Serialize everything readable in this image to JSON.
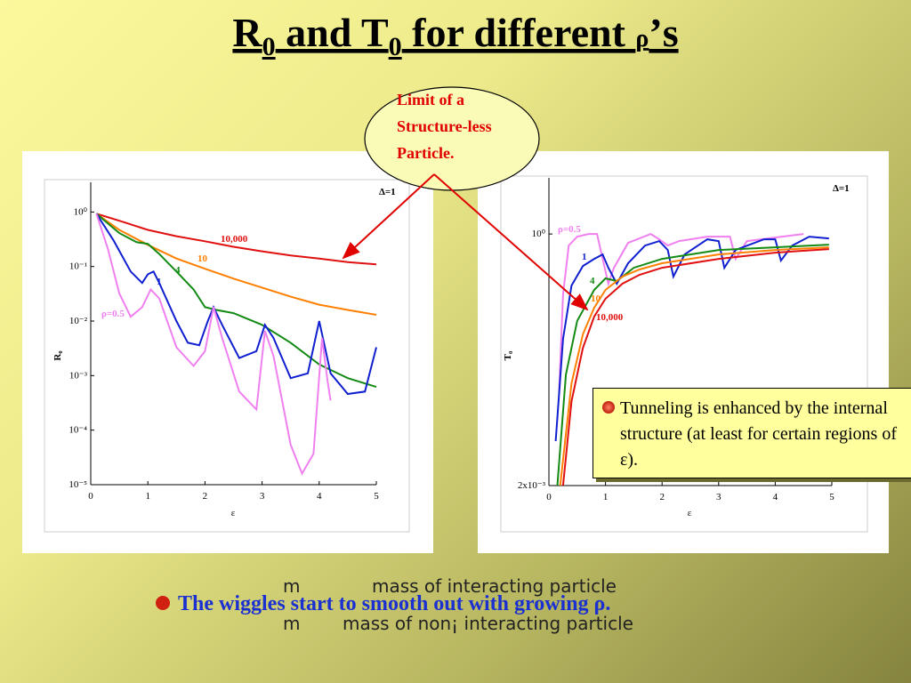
{
  "slide": {
    "title": [
      "R",
      "0",
      " and T",
      "0",
      " for  different ",
      "ρ",
      "’s"
    ],
    "callout": [
      "Limit of a",
      "Structure-less",
      "Particle."
    ],
    "note": "Tunneling is enhanced by the internal structure (at least for certain regions of ε).",
    "bottom": "The wiggles start to smooth out with growing ρ.",
    "overlay": [
      "m",
      "mass of  interacting particle",
      "m",
      "mass of  non¡ interacting particle"
    ]
  },
  "chart_data": [
    {
      "type": "line",
      "annotation": "Δ=1",
      "ylabel": "R₀",
      "xlabel": "ε",
      "log_y": true,
      "xlim": [
        0,
        5
      ],
      "ylim": [
        1e-05,
        3.5
      ],
      "xticks": [
        0,
        1,
        2,
        3,
        4,
        5
      ],
      "yticks": [
        {
          "value": 1,
          "label": "10⁰"
        },
        {
          "value": 0.1,
          "label": "10⁻¹"
        },
        {
          "value": 0.01,
          "label": "10⁻²"
        },
        {
          "value": 0.001,
          "label": "10⁻³"
        },
        {
          "value": 0.0001,
          "label": "10⁻⁴"
        },
        {
          "value": 1e-05,
          "label": "10⁻⁵"
        }
      ],
      "series": [
        {
          "name": "10,000",
          "color": "#e01010",
          "x": [
            0.1,
            0.5,
            1,
            1.5,
            2,
            2.5,
            3,
            3.5,
            4,
            4.5,
            5
          ],
          "values": [
            0.93,
            0.69,
            0.47,
            0.36,
            0.29,
            0.23,
            0.19,
            0.16,
            0.14,
            0.12,
            0.11
          ]
        },
        {
          "name": "10",
          "color": "#ff8000",
          "x": [
            0.1,
            0.5,
            1,
            1.5,
            2,
            2.5,
            3,
            3.5,
            4,
            4.5,
            5
          ],
          "values": [
            0.93,
            0.47,
            0.25,
            0.14,
            0.091,
            0.06,
            0.041,
            0.028,
            0.02,
            0.016,
            0.013
          ]
        },
        {
          "name": "4",
          "color": "#138a13",
          "x": [
            0.1,
            0.5,
            0.8,
            1,
            1.2,
            1.5,
            1.8,
            2,
            2.2,
            2.5,
            3,
            3.5,
            4,
            4.5,
            5
          ],
          "values": [
            0.93,
            0.41,
            0.28,
            0.26,
            0.17,
            0.081,
            0.038,
            0.018,
            0.016,
            0.014,
            0.0085,
            0.004,
            0.0016,
            0.0009,
            0.00062
          ]
        },
        {
          "name": "1",
          "color": "#1020d0",
          "x": [
            0.1,
            0.4,
            0.7,
            0.9,
            1,
            1.1,
            1.2,
            1.5,
            1.7,
            1.9,
            2.05,
            2.15,
            2.3,
            2.6,
            2.9,
            3.05,
            3.2,
            3.5,
            3.8,
            4,
            4.2,
            4.5,
            4.8,
            5
          ],
          "values": [
            0.93,
            0.3,
            0.081,
            0.05,
            0.072,
            0.081,
            0.05,
            0.01,
            0.004,
            0.0036,
            0.01,
            0.018,
            0.0085,
            0.0021,
            0.0028,
            0.0085,
            0.0049,
            0.0009,
            0.0011,
            0.01,
            0.0011,
            0.00046,
            0.00051,
            0.0033
          ]
        },
        {
          "name": "ρ=0.5",
          "color": "#f080f0",
          "x": [
            0.1,
            0.3,
            0.5,
            0.7,
            0.9,
            1.05,
            1.2,
            1.5,
            1.8,
            2,
            2.15,
            2.3,
            2.6,
            2.9,
            3.05,
            3.2,
            3.5,
            3.7,
            3.9,
            4.05,
            4.15,
            4.2
          ],
          "values": [
            0.93,
            0.21,
            0.032,
            0.012,
            0.018,
            0.038,
            0.026,
            0.0033,
            0.0015,
            0.0028,
            0.018,
            0.0049,
            0.00051,
            0.00024,
            0.0066,
            0.0023,
            5.4e-05,
            1.6e-05,
            3.7e-05,
            0.0049,
            0.00075,
            0.00035
          ]
        }
      ]
    },
    {
      "type": "line",
      "annotation": "Δ=1",
      "ylabel": "T₀",
      "xlabel": "ε",
      "log_y": true,
      "xlim": [
        0,
        5
      ],
      "ylim": [
        0.002,
        4
      ],
      "xticks": [
        0,
        1,
        2,
        3,
        4,
        5
      ],
      "yticks": [
        {
          "value": 1,
          "label": "10⁰"
        },
        {
          "value": 0.002,
          "label": "2x10⁻³"
        }
      ],
      "series": [
        {
          "name": "ρ=0.5",
          "color": "#f080f0",
          "x": [
            0.18,
            0.25,
            0.35,
            0.5,
            0.7,
            0.85,
            0.95,
            1.05,
            1.15,
            1.4,
            1.8,
            1.95,
            2.1,
            2.3,
            2.8,
            3.2,
            3.3,
            3.5,
            4.5
          ],
          "values": [
            0.02,
            0.225,
            0.752,
            0.936,
            1.0,
            1.0,
            0.541,
            0.293,
            0.434,
            0.803,
            1.0,
            0.877,
            0.752,
            0.839,
            0.936,
            0.936,
            0.541,
            0.839,
            1.0
          ]
        },
        {
          "name": "1",
          "color": "#1020d0",
          "x": [
            0.12,
            0.25,
            0.4,
            0.6,
            0.8,
            0.95,
            1.05,
            1.2,
            1.4,
            1.7,
            1.95,
            2.1,
            2.2,
            2.4,
            2.8,
            3,
            3.1,
            3.3,
            3.8,
            4,
            4.1,
            4.3,
            4.6,
            4.95
          ],
          "values": [
            0.006,
            0.075,
            0.28,
            0.454,
            0.541,
            0.604,
            0.434,
            0.293,
            0.485,
            0.752,
            0.839,
            0.674,
            0.349,
            0.604,
            0.877,
            0.839,
            0.434,
            0.674,
            0.877,
            0.877,
            0.518,
            0.752,
            0.936,
            0.896
          ]
        },
        {
          "name": "4",
          "color": "#138a13",
          "x": [
            0.15,
            0.3,
            0.5,
            0.8,
            1,
            1.2,
            1.5,
            2,
            2.5,
            3,
            4,
            4.95
          ],
          "values": [
            0.002,
            0.031,
            0.117,
            0.251,
            0.334,
            0.313,
            0.434,
            0.541,
            0.604,
            0.674,
            0.72,
            0.769
          ]
        },
        {
          "name": "10",
          "color": "#ff8000",
          "x": [
            0.2,
            0.4,
            0.6,
            0.8,
            1,
            1.3,
            1.6,
            2,
            3,
            4,
            4.95
          ],
          "values": [
            0.002,
            0.025,
            0.084,
            0.162,
            0.251,
            0.349,
            0.416,
            0.485,
            0.604,
            0.674,
            0.72
          ]
        },
        {
          "name": "10,000",
          "color": "#e01010",
          "x": [
            0.25,
            0.4,
            0.6,
            0.8,
            1,
            1.3,
            1.6,
            2,
            3,
            4,
            4.95
          ],
          "values": [
            0.002,
            0.016,
            0.06,
            0.13,
            0.202,
            0.293,
            0.365,
            0.434,
            0.541,
            0.631,
            0.689
          ]
        }
      ]
    }
  ]
}
